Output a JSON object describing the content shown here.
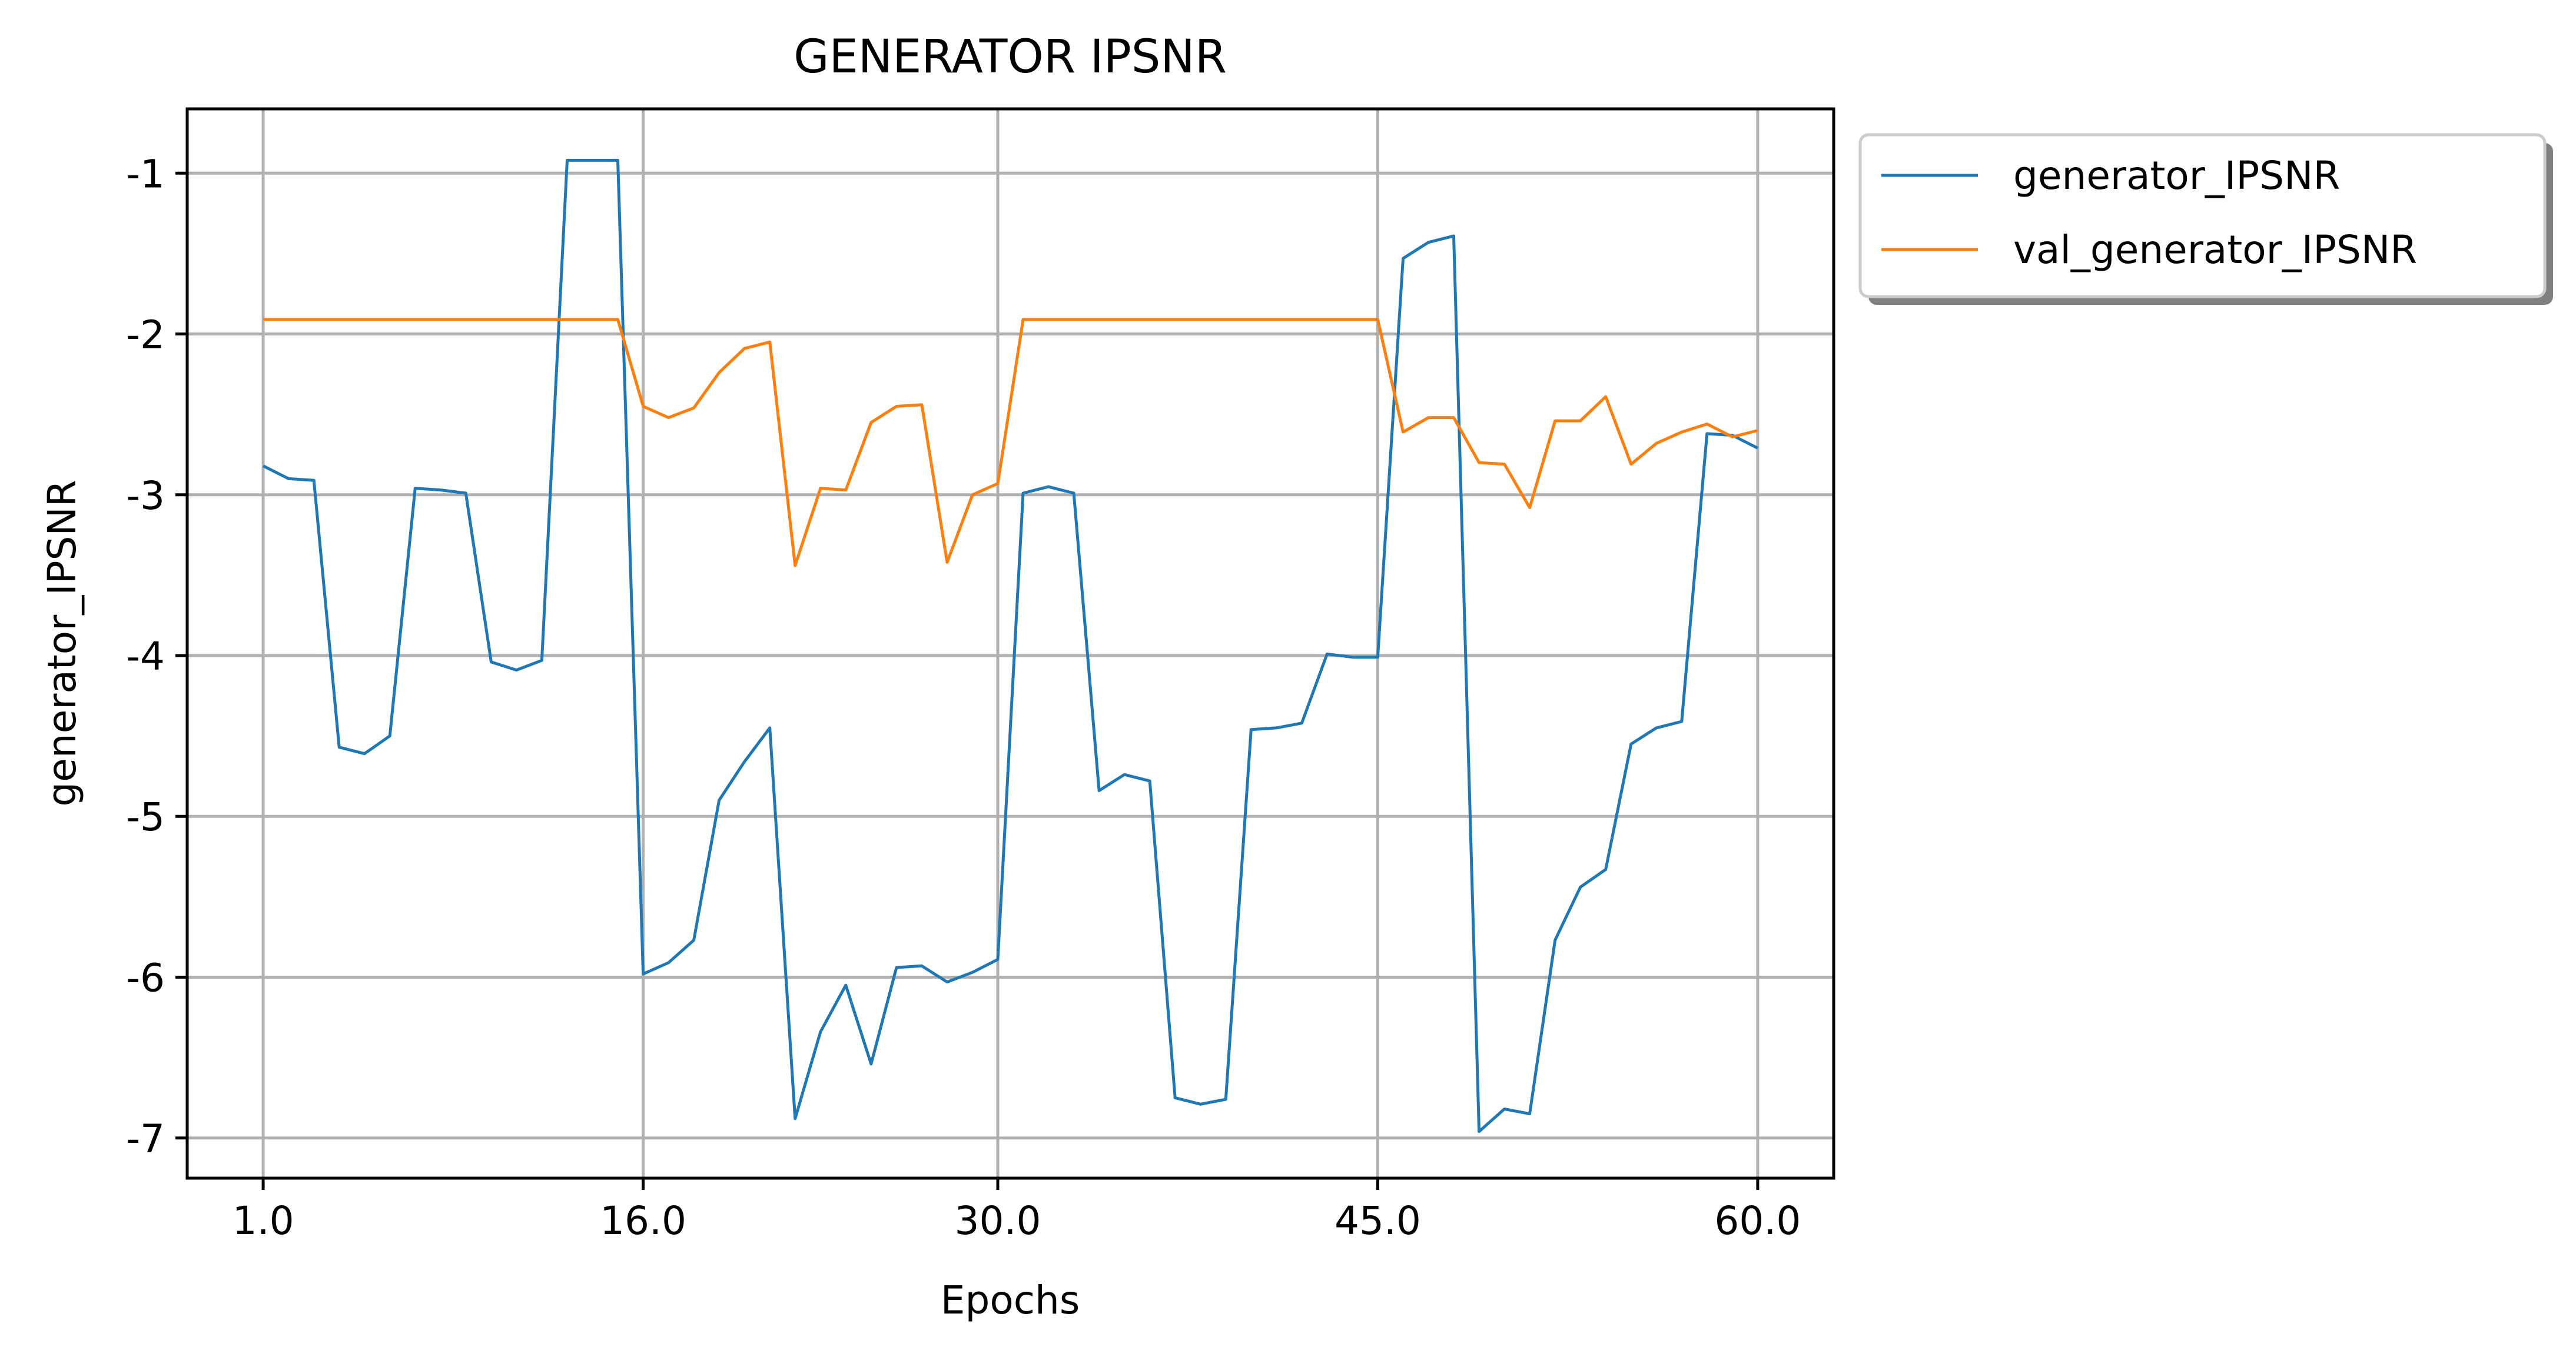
{
  "chart_data": {
    "type": "line",
    "title": "GENERATOR IPSNR",
    "xlabel": "Epochs",
    "ylabel": "generator_IPSNR",
    "grid": true,
    "legend_position": "outside-top-right",
    "xlim": [
      -2,
      63
    ],
    "ylim": [
      -7.25,
      -0.6
    ],
    "x_ticks": [
      1,
      16,
      30,
      45,
      60
    ],
    "x_tick_labels": [
      "1.0",
      "16.0",
      "30.0",
      "45.0",
      "60.0"
    ],
    "y_ticks": [
      -1,
      -2,
      -3,
      -4,
      -5,
      -6,
      -7
    ],
    "y_tick_labels": [
      "-1",
      "-2",
      "-3",
      "-4",
      "-5",
      "-6",
      "-7"
    ],
    "x": [
      1,
      2,
      3,
      4,
      5,
      6,
      7,
      8,
      9,
      10,
      11,
      12,
      13,
      14,
      15,
      16,
      17,
      18,
      19,
      20,
      21,
      22,
      23,
      24,
      25,
      26,
      27,
      28,
      29,
      30,
      31,
      32,
      33,
      34,
      35,
      36,
      37,
      38,
      39,
      40,
      41,
      42,
      43,
      44,
      45,
      46,
      47,
      48,
      49,
      50,
      51,
      52,
      53,
      54,
      55,
      56,
      57,
      58,
      59,
      60
    ],
    "series": [
      {
        "name": "generator_IPSNR",
        "color": "#1f77b4",
        "values": [
          -2.82,
          -2.9,
          -2.91,
          -4.57,
          -4.61,
          -4.5,
          -2.96,
          -2.97,
          -2.99,
          -4.04,
          -4.09,
          -4.03,
          -0.92,
          -0.92,
          -0.92,
          -5.98,
          -5.91,
          -5.77,
          -4.9,
          -4.66,
          -4.45,
          -6.88,
          -6.34,
          -6.05,
          -6.54,
          -5.94,
          -5.93,
          -6.03,
          -5.97,
          -5.89,
          -2.99,
          -2.95,
          -2.99,
          -4.84,
          -4.74,
          -4.78,
          -6.75,
          -6.79,
          -6.76,
          -4.46,
          -4.45,
          -4.42,
          -3.99,
          -4.01,
          -4.01,
          -1.53,
          -1.43,
          -1.39,
          -6.96,
          -6.82,
          -6.85,
          -5.77,
          -5.44,
          -5.33,
          -4.55,
          -4.45,
          -4.41,
          -2.62,
          -2.63,
          -2.71
        ]
      },
      {
        "name": "val_generator_IPSNR",
        "color": "#ff7f0e",
        "values": [
          -1.91,
          -1.91,
          -1.91,
          -1.91,
          -1.91,
          -1.91,
          -1.91,
          -1.91,
          -1.91,
          -1.91,
          -1.91,
          -1.91,
          -1.91,
          -1.91,
          -1.91,
          -2.45,
          -2.52,
          -2.46,
          -2.24,
          -2.09,
          -2.05,
          -3.44,
          -2.96,
          -2.97,
          -2.55,
          -2.45,
          -2.44,
          -3.42,
          -3.0,
          -2.93,
          -1.91,
          -1.91,
          -1.91,
          -1.91,
          -1.91,
          -1.91,
          -1.91,
          -1.91,
          -1.91,
          -1.91,
          -1.91,
          -1.91,
          -1.91,
          -1.91,
          -1.91,
          -2.61,
          -2.52,
          -2.52,
          -2.8,
          -2.81,
          -3.08,
          -2.54,
          -2.54,
          -2.39,
          -2.81,
          -2.68,
          -2.61,
          -2.56,
          -2.64,
          -2.6
        ]
      }
    ]
  }
}
